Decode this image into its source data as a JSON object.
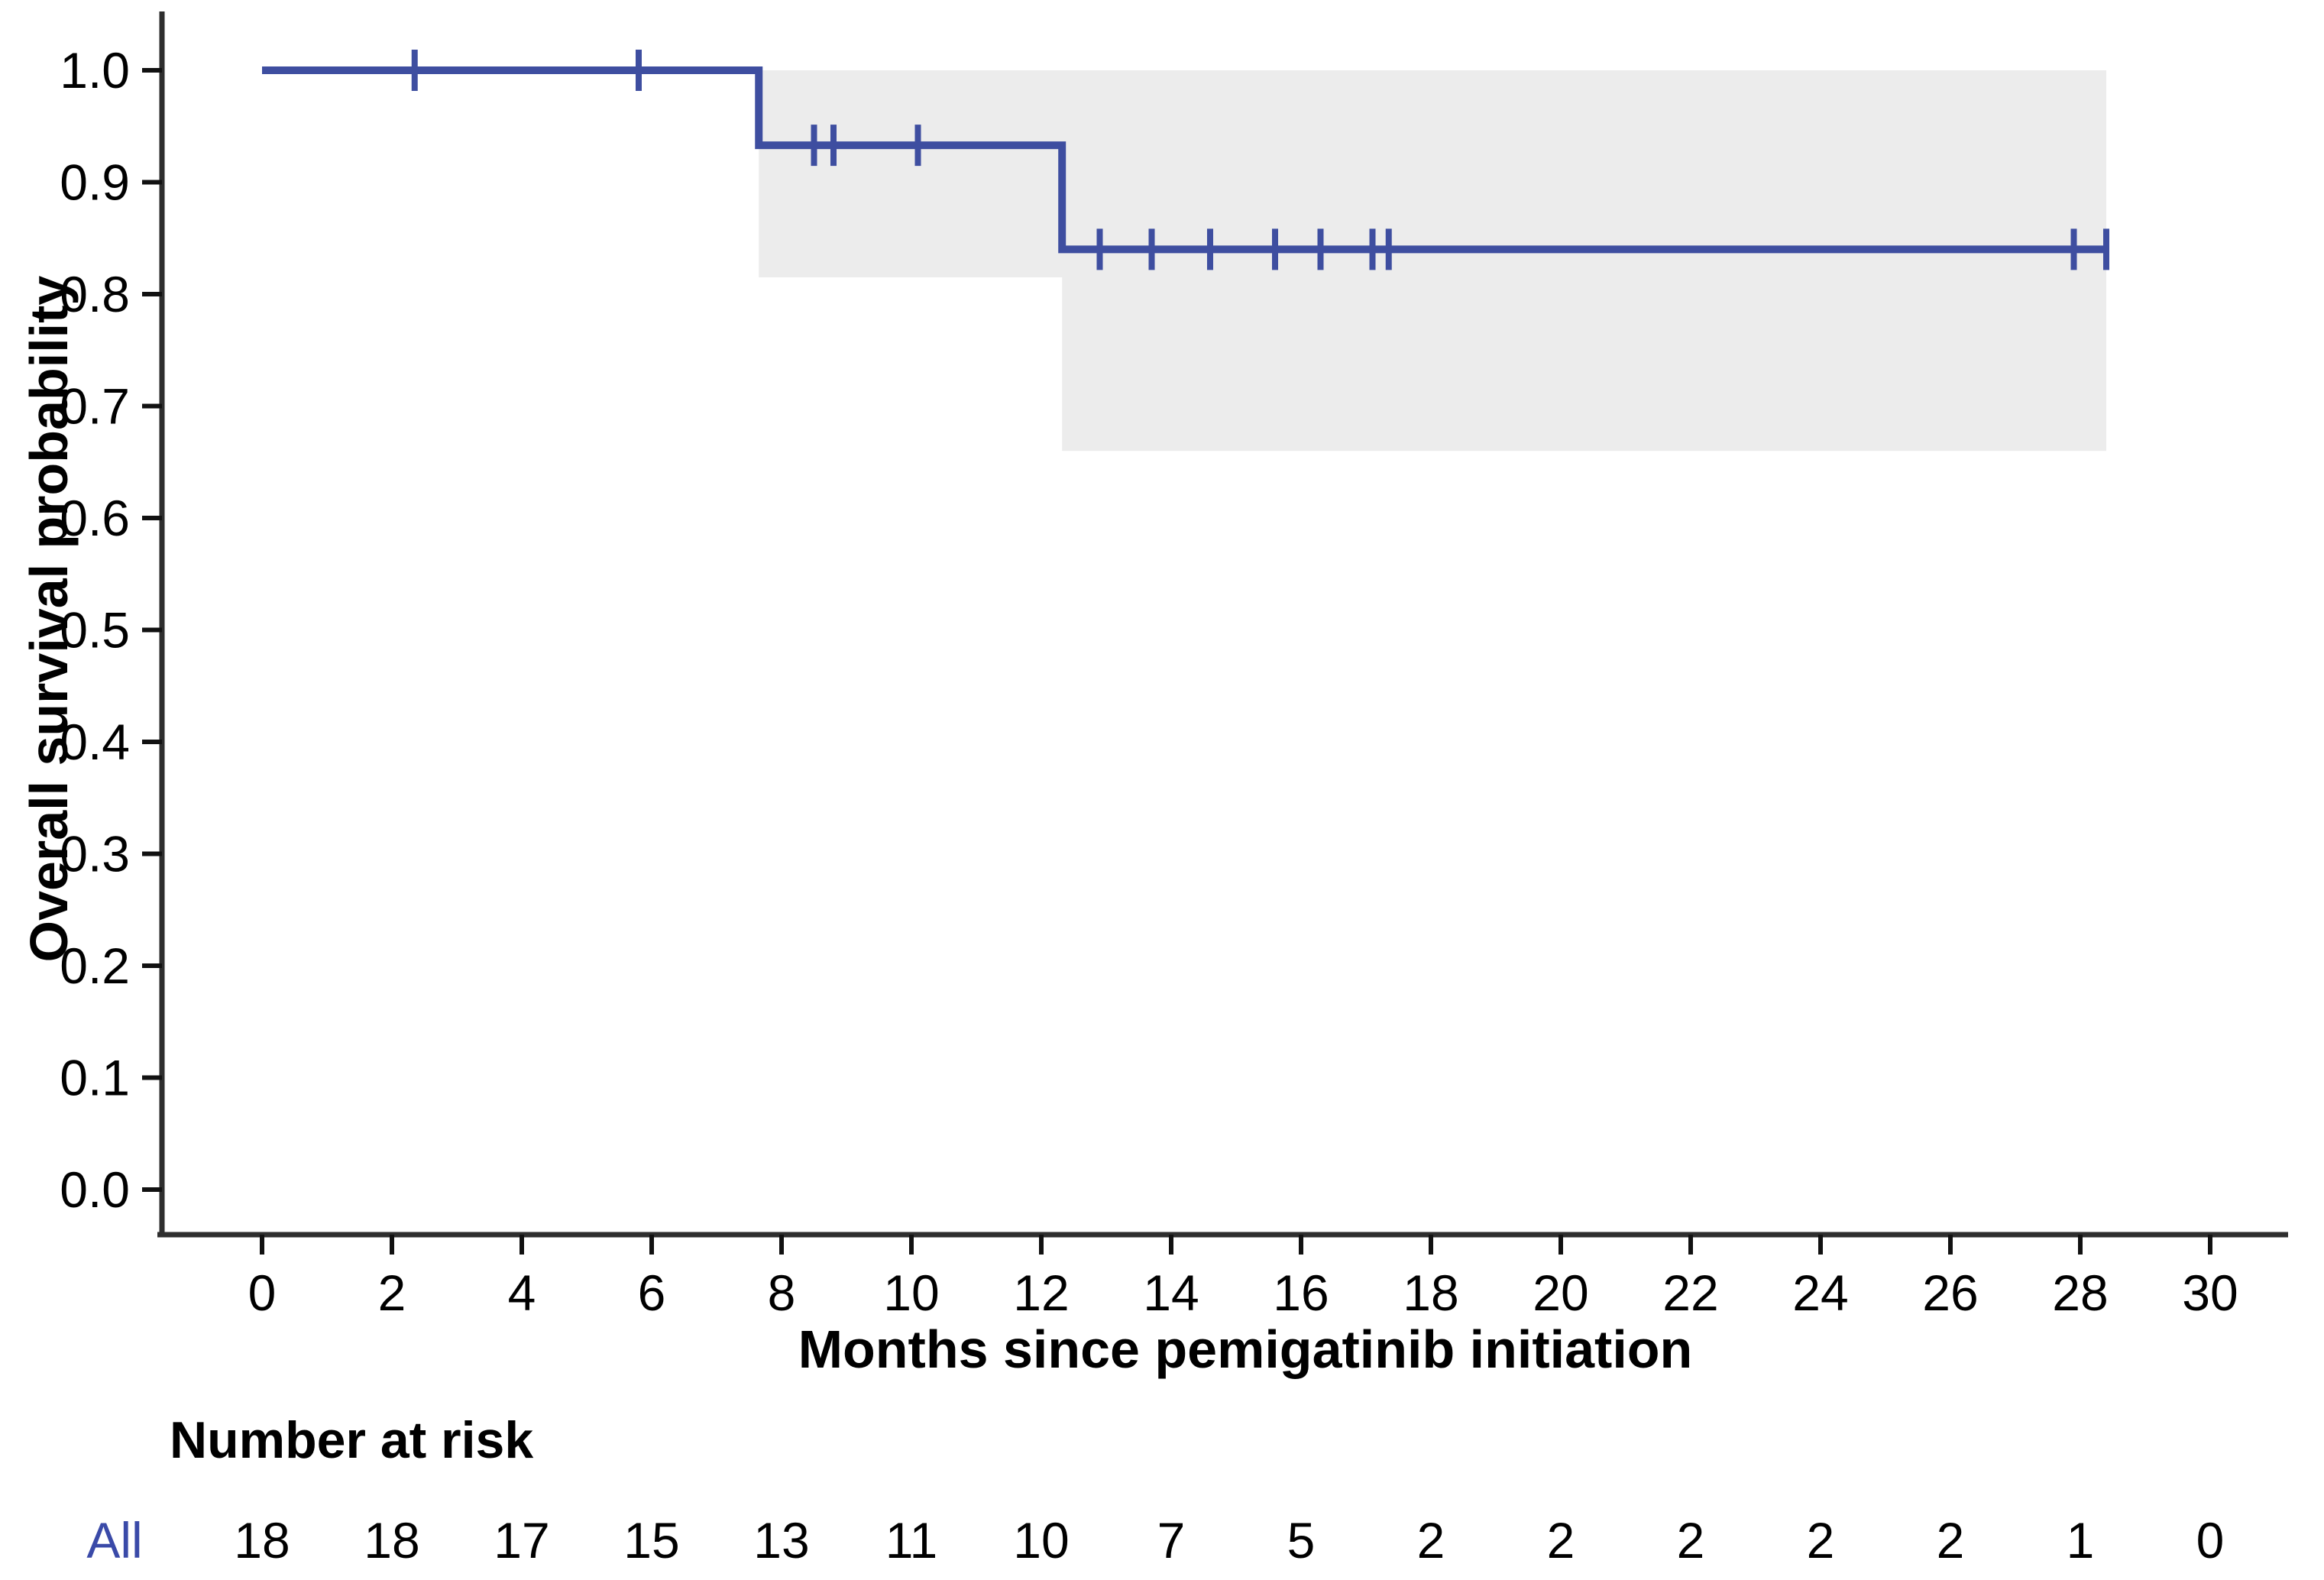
{
  "figure": {
    "background": "#ffffff",
    "axis_color": "#2e2e2e",
    "text_color": "#000000"
  },
  "chart_data": {
    "type": "line",
    "subtype": "kaplan-meier-step",
    "title": "",
    "xlabel": "Months since pemigatinib initiation",
    "ylabel": "Overall survival probability",
    "xlim": [
      0,
      30
    ],
    "ylim": [
      0.0,
      1.0
    ],
    "grid": "off",
    "x_ticks": [
      0,
      2,
      4,
      6,
      8,
      10,
      12,
      14,
      16,
      18,
      20,
      22,
      24,
      26,
      28,
      30
    ],
    "y_tick_labels": [
      "1.0",
      "0.9",
      "0.8",
      "0.7",
      "0.6",
      "0.5",
      "0.4",
      "0.3",
      "0.2",
      "0.1",
      "0.0"
    ],
    "curve_color": "#3E4EA0",
    "series": [
      {
        "name": "All",
        "steps": [
          {
            "t0": 0,
            "t1": 7.65,
            "survival": 1.0
          },
          {
            "t0": 7.65,
            "t1": 12.32,
            "survival": 0.933
          },
          {
            "t0": 12.32,
            "t1": 28.4,
            "survival": 0.84
          }
        ]
      }
    ],
    "censor_marks": [
      [
        2.35,
        1.0
      ],
      [
        5.8,
        1.0
      ],
      [
        8.5,
        0.933
      ],
      [
        8.8,
        0.933
      ],
      [
        10.1,
        0.933
      ],
      [
        12.9,
        0.84
      ],
      [
        13.7,
        0.84
      ],
      [
        14.6,
        0.84
      ],
      [
        15.6,
        0.84
      ],
      [
        16.3,
        0.84
      ],
      [
        17.1,
        0.84
      ],
      [
        17.35,
        0.84
      ],
      [
        27.9,
        0.84
      ],
      [
        28.4,
        0.84
      ]
    ],
    "ci_band": {
      "color": "#ECECEC",
      "segments": [
        {
          "t0": 7.65,
          "t1": 12.32,
          "lower": 0.815,
          "upper": 1.0
        },
        {
          "t0": 12.32,
          "t1": 28.4,
          "lower": 0.66,
          "upper": 1.0
        }
      ]
    },
    "risk_table": {
      "header": "Number at risk",
      "group_label": "All",
      "group_color": "#3A4AA8",
      "times": [
        0,
        2,
        4,
        6,
        8,
        10,
        12,
        14,
        16,
        18,
        20,
        22,
        24,
        26,
        28,
        30
      ],
      "counts": [
        18,
        18,
        17,
        15,
        13,
        11,
        10,
        7,
        5,
        2,
        2,
        2,
        2,
        2,
        1,
        0
      ]
    }
  }
}
